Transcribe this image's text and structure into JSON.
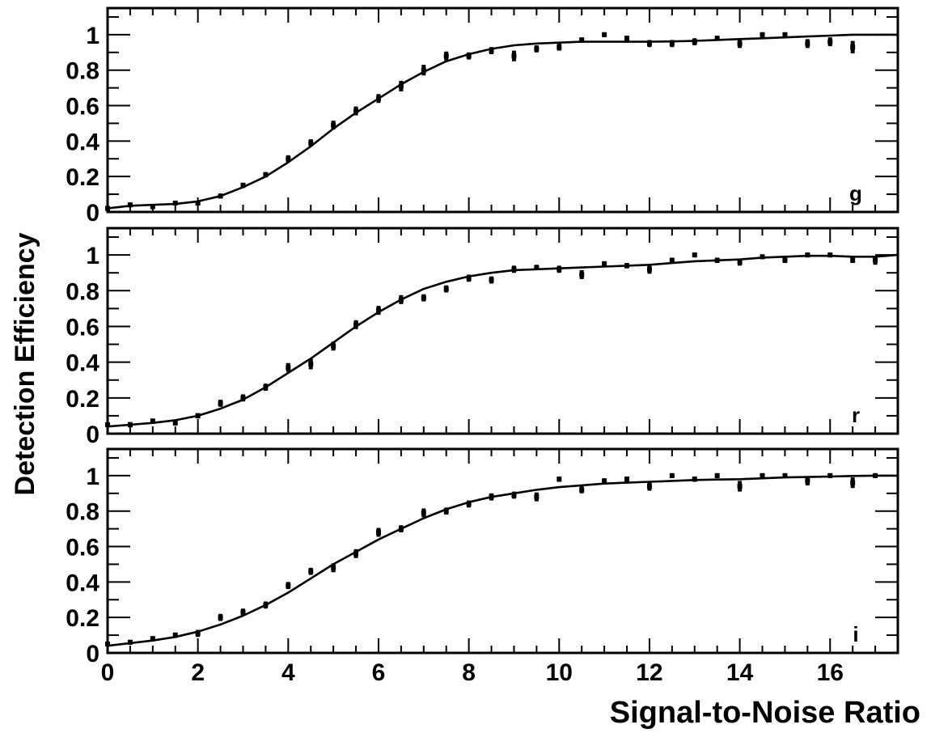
{
  "figure": {
    "ylabel": "Detection Efficiency",
    "xlabel": "Signal-to-Noise Ratio",
    "line_color": "#000000",
    "background": "#ffffff"
  },
  "chart_data": [
    {
      "type": "scatter",
      "panel_label": "g",
      "xlim": [
        0,
        17.5
      ],
      "ylim": [
        0,
        1.15
      ],
      "x_ticks": [
        0,
        2,
        4,
        6,
        8,
        10,
        12,
        14,
        16
      ],
      "x_tick_labels": [],
      "y_ticks": [
        0,
        0.2,
        0.4,
        0.6,
        0.8,
        1
      ],
      "y_tick_labels": [
        "0",
        "0.2",
        "0.4",
        "0.6",
        "0.8",
        "1"
      ],
      "series": [
        {
          "kind": "points",
          "x": [
            0,
            0.5,
            1,
            1.5,
            2,
            2.5,
            3,
            3.5,
            4,
            4.5,
            5,
            5.5,
            6,
            6.5,
            7,
            7.5,
            8,
            8.5,
            9,
            9.5,
            10,
            10.5,
            11,
            11.5,
            12,
            12.5,
            13,
            13.5,
            14,
            14.5,
            15,
            15.5,
            16,
            16.5
          ],
          "y": [
            0.02,
            0.04,
            0.03,
            0.05,
            0.05,
            0.09,
            0.15,
            0.21,
            0.3,
            0.39,
            0.49,
            0.57,
            0.64,
            0.71,
            0.8,
            0.88,
            0.88,
            0.91,
            0.88,
            0.92,
            0.93,
            0.97,
            1.0,
            0.98,
            0.95,
            0.95,
            0.96,
            0.98,
            0.95,
            1.0,
            1.0,
            0.95,
            0.96,
            0.93
          ],
          "err": [
            0.01,
            0.01,
            0.01,
            0.01,
            0.01,
            0.01,
            0.015,
            0.015,
            0.02,
            0.02,
            0.025,
            0.025,
            0.025,
            0.03,
            0.03,
            0.025,
            0.02,
            0.02,
            0.03,
            0.02,
            0.02,
            0.015,
            0.01,
            0.01,
            0.02,
            0.02,
            0.02,
            0.01,
            0.025,
            0.01,
            0.01,
            0.025,
            0.025,
            0.035
          ]
        },
        {
          "kind": "curve",
          "x": [
            0,
            0.5,
            1,
            1.5,
            2,
            2.5,
            3,
            3.5,
            4,
            4.5,
            5,
            5.5,
            6,
            6.5,
            7,
            7.5,
            8,
            8.5,
            9,
            9.5,
            10,
            10.5,
            11,
            11.5,
            12,
            12.5,
            13,
            13.5,
            14,
            14.5,
            15,
            15.5,
            16,
            16.5,
            17,
            17.5
          ],
          "y": [
            0.02,
            0.035,
            0.04,
            0.045,
            0.06,
            0.09,
            0.14,
            0.2,
            0.28,
            0.37,
            0.47,
            0.56,
            0.64,
            0.72,
            0.79,
            0.85,
            0.89,
            0.92,
            0.94,
            0.95,
            0.955,
            0.96,
            0.96,
            0.96,
            0.96,
            0.962,
            0.965,
            0.97,
            0.975,
            0.98,
            0.985,
            0.99,
            0.995,
            1.0,
            1.0,
            1.0
          ]
        }
      ]
    },
    {
      "type": "scatter",
      "panel_label": "r",
      "xlim": [
        0,
        17.5
      ],
      "ylim": [
        0,
        1.15
      ],
      "x_ticks": [
        0,
        2,
        4,
        6,
        8,
        10,
        12,
        14,
        16
      ],
      "x_tick_labels": [],
      "y_ticks": [
        0,
        0.2,
        0.4,
        0.6,
        0.8,
        1
      ],
      "y_tick_labels": [
        "0",
        "0.2",
        "0.4",
        "0.6",
        "0.8",
        "1"
      ],
      "series": [
        {
          "kind": "points",
          "x": [
            0,
            0.5,
            1,
            1.5,
            2,
            2.5,
            3,
            3.5,
            4,
            4.5,
            5,
            5.5,
            6,
            6.5,
            7,
            7.5,
            8,
            8.5,
            9,
            9.5,
            10,
            10.5,
            11,
            11.5,
            12,
            12.5,
            13,
            13.5,
            14,
            14.5,
            15,
            15.5,
            16,
            16.5,
            17
          ],
          "y": [
            0.05,
            0.05,
            0.07,
            0.06,
            0.1,
            0.17,
            0.2,
            0.26,
            0.37,
            0.39,
            0.49,
            0.61,
            0.69,
            0.75,
            0.76,
            0.81,
            0.87,
            0.86,
            0.92,
            0.93,
            0.92,
            0.89,
            0.95,
            0.94,
            0.92,
            0.97,
            1.0,
            0.97,
            0.96,
            0.99,
            0.97,
            1.0,
            1.0,
            0.97,
            0.97
          ],
          "err": [
            0.01,
            0.015,
            0.015,
            0.015,
            0.015,
            0.02,
            0.02,
            0.02,
            0.025,
            0.03,
            0.025,
            0.025,
            0.025,
            0.025,
            0.02,
            0.02,
            0.02,
            0.02,
            0.02,
            0.015,
            0.02,
            0.025,
            0.015,
            0.015,
            0.025,
            0.015,
            0.01,
            0.015,
            0.02,
            0.01,
            0.015,
            0.01,
            0.01,
            0.015,
            0.025
          ]
        },
        {
          "kind": "curve",
          "x": [
            0,
            0.5,
            1,
            1.5,
            2,
            2.5,
            3,
            3.5,
            4,
            4.5,
            5,
            5.5,
            6,
            6.5,
            7,
            7.5,
            8,
            8.5,
            9,
            9.5,
            10,
            10.5,
            11,
            11.5,
            12,
            12.5,
            13,
            13.5,
            14,
            14.5,
            15,
            15.5,
            16,
            16.5,
            17,
            17.5
          ],
          "y": [
            0.04,
            0.05,
            0.06,
            0.075,
            0.1,
            0.14,
            0.19,
            0.26,
            0.34,
            0.42,
            0.51,
            0.6,
            0.68,
            0.75,
            0.81,
            0.85,
            0.88,
            0.9,
            0.915,
            0.92,
            0.925,
            0.93,
            0.935,
            0.94,
            0.945,
            0.955,
            0.965,
            0.97,
            0.975,
            0.985,
            0.99,
            0.995,
            0.995,
            0.99,
            0.99,
            1.0
          ]
        }
      ]
    },
    {
      "type": "scatter",
      "panel_label": "i",
      "xlim": [
        0,
        17.5
      ],
      "ylim": [
        0,
        1.15
      ],
      "x_ticks": [
        0,
        2,
        4,
        6,
        8,
        10,
        12,
        14,
        16
      ],
      "x_tick_labels": [
        "0",
        "2",
        "4",
        "6",
        "8",
        "10",
        "12",
        "14",
        "16"
      ],
      "y_ticks": [
        0,
        0.2,
        0.4,
        0.6,
        0.8,
        1
      ],
      "y_tick_labels": [
        "0",
        "0.2",
        "0.4",
        "0.6",
        "0.8",
        "1"
      ],
      "series": [
        {
          "kind": "points",
          "x": [
            0,
            0.5,
            1,
            1.5,
            2,
            2.5,
            3,
            3.5,
            4,
            4.5,
            5,
            5.5,
            6,
            6.5,
            7,
            7.5,
            8,
            8.5,
            9,
            9.5,
            10,
            10.5,
            11,
            11.5,
            12,
            12.5,
            13,
            13.5,
            14,
            14.5,
            15,
            15.5,
            16,
            16.5,
            17
          ],
          "y": [
            0.05,
            0.06,
            0.08,
            0.1,
            0.11,
            0.2,
            0.23,
            0.27,
            0.38,
            0.46,
            0.48,
            0.56,
            0.68,
            0.7,
            0.79,
            0.8,
            0.84,
            0.88,
            0.89,
            0.88,
            0.98,
            0.92,
            0.97,
            0.98,
            0.94,
            1.0,
            0.98,
            1.0,
            0.94,
            1.0,
            1.0,
            0.97,
            1.0,
            0.96,
            1.0
          ],
          "err": [
            0.01,
            0.01,
            0.015,
            0.015,
            0.02,
            0.02,
            0.02,
            0.02,
            0.02,
            0.02,
            0.025,
            0.025,
            0.025,
            0.02,
            0.025,
            0.02,
            0.02,
            0.02,
            0.02,
            0.025,
            0.015,
            0.02,
            0.015,
            0.015,
            0.025,
            0.01,
            0.015,
            0.01,
            0.03,
            0.01,
            0.01,
            0.025,
            0.01,
            0.03,
            0.01
          ]
        },
        {
          "kind": "curve",
          "x": [
            0,
            0.5,
            1,
            1.5,
            2,
            2.5,
            3,
            3.5,
            4,
            4.5,
            5,
            5.5,
            6,
            6.5,
            7,
            7.5,
            8,
            8.5,
            9,
            9.5,
            10,
            10.5,
            11,
            11.5,
            12,
            12.5,
            13,
            13.5,
            14,
            14.5,
            15,
            15.5,
            16,
            16.5,
            17,
            17.5
          ],
          "y": [
            0.04,
            0.055,
            0.07,
            0.09,
            0.12,
            0.16,
            0.21,
            0.27,
            0.34,
            0.42,
            0.5,
            0.57,
            0.64,
            0.7,
            0.76,
            0.81,
            0.85,
            0.88,
            0.9,
            0.92,
            0.935,
            0.945,
            0.955,
            0.96,
            0.965,
            0.97,
            0.975,
            0.978,
            0.98,
            0.985,
            0.99,
            0.992,
            0.995,
            0.998,
            1.0,
            1.0
          ]
        }
      ]
    }
  ]
}
